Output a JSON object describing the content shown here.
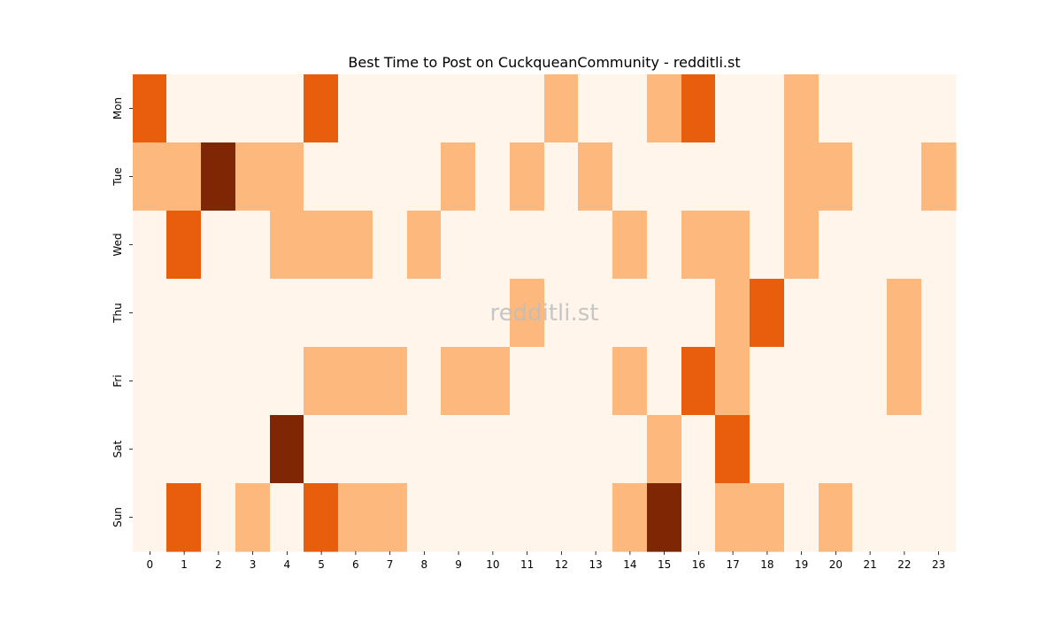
{
  "chart_data": {
    "type": "heatmap",
    "title": "Best Time to Post on CuckqueanCommunity - redditli.st",
    "watermark": "redditli.st",
    "xlabel": "",
    "ylabel": "",
    "x_labels": [
      "0",
      "1",
      "2",
      "3",
      "4",
      "5",
      "6",
      "7",
      "8",
      "9",
      "10",
      "11",
      "12",
      "13",
      "14",
      "15",
      "16",
      "17",
      "18",
      "19",
      "20",
      "21",
      "22",
      "23"
    ],
    "y_labels": [
      "Mon",
      "Tue",
      "Wed",
      "Thu",
      "Fri",
      "Sat",
      "Sun"
    ],
    "values": [
      [
        2,
        0,
        0,
        0,
        0,
        2,
        0,
        0,
        0,
        0,
        0,
        0,
        1,
        0,
        0,
        1,
        2,
        0,
        0,
        1,
        0,
        0,
        0,
        0
      ],
      [
        1,
        1,
        3,
        1,
        1,
        0,
        0,
        0,
        0,
        1,
        0,
        1,
        0,
        1,
        0,
        0,
        0,
        0,
        0,
        1,
        1,
        0,
        0,
        1
      ],
      [
        0,
        2,
        0,
        0,
        1,
        1,
        1,
        0,
        1,
        0,
        0,
        0,
        0,
        0,
        1,
        0,
        1,
        1,
        0,
        1,
        0,
        0,
        0,
        0
      ],
      [
        0,
        0,
        0,
        0,
        0,
        0,
        0,
        0,
        0,
        0,
        0,
        1,
        0,
        0,
        0,
        0,
        0,
        1,
        2,
        0,
        0,
        0,
        1,
        0
      ],
      [
        0,
        0,
        0,
        0,
        0,
        1,
        1,
        1,
        0,
        1,
        1,
        0,
        0,
        0,
        1,
        0,
        2,
        1,
        0,
        0,
        0,
        0,
        1,
        0
      ],
      [
        0,
        0,
        0,
        0,
        3,
        0,
        0,
        0,
        0,
        0,
        0,
        0,
        0,
        0,
        0,
        1,
        0,
        2,
        0,
        0,
        0,
        0,
        0,
        0
      ],
      [
        0,
        2,
        0,
        1,
        0,
        2,
        1,
        1,
        0,
        0,
        0,
        0,
        0,
        0,
        1,
        3,
        0,
        1,
        1,
        0,
        1,
        0,
        0,
        0
      ]
    ],
    "value_range": [
      0,
      3
    ],
    "colormap": "Oranges",
    "level_colors": [
      "#fff5eb",
      "#fdb97d",
      "#e95e0d",
      "#7f2704"
    ],
    "colorbar": false,
    "grid": false
  }
}
